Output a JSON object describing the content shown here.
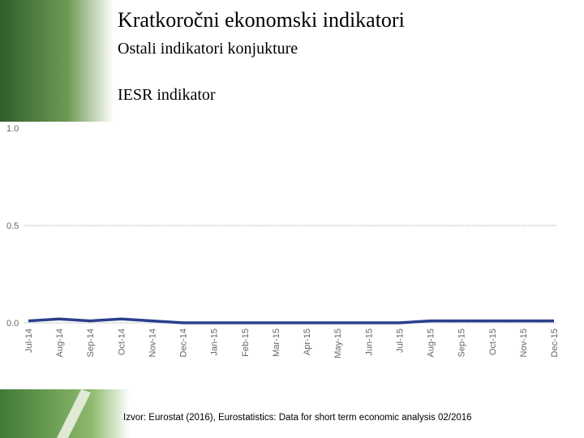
{
  "title": "Kratkoročni ekonomski indikatori",
  "subtitle": "Ostali indikatori konjukture",
  "source": "Izvor: Eurostat (2016), Eurostatistics: Data for short term economic analysis 02/2016",
  "chart_data": {
    "type": "line",
    "title": "IESR indikator",
    "categories": [
      "Jul-14",
      "Aug-14",
      "Sep-14",
      "Oct-14",
      "Nov-14",
      "Dec-14",
      "Jan-15",
      "Feb-15",
      "Mar-15",
      "Apr-15",
      "May-15",
      "Jun-15",
      "Jul-15",
      "Aug-15",
      "Sep-15",
      "Oct-15",
      "Nov-15",
      "Dec-15"
    ],
    "series": [
      {
        "name": "IESR",
        "color": "#2b3f8c",
        "values": [
          0.01,
          0.02,
          0.01,
          0.02,
          0.01,
          0.0,
          0.0,
          0.0,
          0.0,
          0.0,
          0.0,
          0.0,
          0.0,
          0.01,
          0.01,
          0.01,
          0.01,
          0.01
        ]
      }
    ],
    "ylim": [
      0,
      1
    ],
    "yticks": [
      {
        "value": 0,
        "label": "0.0"
      },
      {
        "value": 0.5,
        "label": "0.5"
      },
      {
        "value": 1,
        "label": "1.0"
      }
    ],
    "grid": true
  }
}
